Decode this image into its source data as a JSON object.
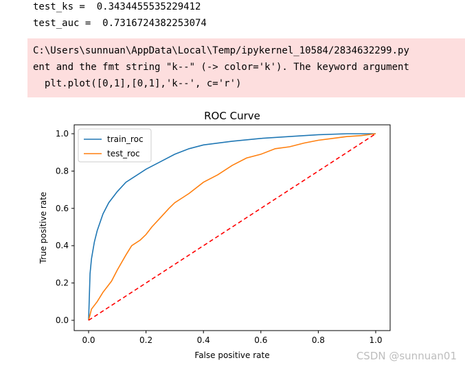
{
  "output": {
    "ks_line": "test_ks =  0.3434455535229412",
    "auc_line": "test_auc =  0.7316724382253074"
  },
  "warning": {
    "line1": "C:\\Users\\sunnuan\\AppData\\Local\\Temp/ipykernel_10584/2834632299.py",
    "line2": "ent and the fmt string \"k--\" (-> color='k'). The keyword argument",
    "line3": "  plt.plot([0,1],[0,1],'k--', c='r')"
  },
  "chart_data": {
    "type": "line",
    "title": "ROC Curve",
    "xlabel": "False positive rate",
    "ylabel": "True positive rate",
    "xlim": [
      0,
      1
    ],
    "ylim": [
      0,
      1
    ],
    "xticks": [
      "0.0",
      "0.2",
      "0.4",
      "0.6",
      "0.8",
      "1.0"
    ],
    "yticks": [
      "0.0",
      "0.2",
      "0.4",
      "0.6",
      "0.8",
      "1.0"
    ],
    "legend_position": "top-left",
    "series": [
      {
        "name": "train_roc",
        "color": "#1f77b4",
        "x": [
          0,
          0.005,
          0.01,
          0.02,
          0.03,
          0.05,
          0.07,
          0.1,
          0.13,
          0.16,
          0.2,
          0.25,
          0.3,
          0.35,
          0.4,
          0.5,
          0.6,
          0.7,
          0.8,
          0.9,
          1.0
        ],
        "y": [
          0,
          0.25,
          0.33,
          0.42,
          0.48,
          0.57,
          0.63,
          0.69,
          0.74,
          0.77,
          0.81,
          0.85,
          0.89,
          0.92,
          0.94,
          0.96,
          0.975,
          0.985,
          0.995,
          1.0,
          1.0
        ]
      },
      {
        "name": "test_roc",
        "color": "#ff7f0e",
        "x": [
          0,
          0.01,
          0.03,
          0.05,
          0.08,
          0.1,
          0.13,
          0.15,
          0.18,
          0.2,
          0.22,
          0.25,
          0.28,
          0.3,
          0.33,
          0.35,
          0.4,
          0.45,
          0.5,
          0.55,
          0.6,
          0.65,
          0.7,
          0.75,
          0.8,
          0.85,
          0.9,
          0.95,
          1.0
        ],
        "y": [
          0,
          0.06,
          0.1,
          0.15,
          0.21,
          0.27,
          0.35,
          0.4,
          0.43,
          0.46,
          0.5,
          0.55,
          0.6,
          0.63,
          0.66,
          0.68,
          0.74,
          0.78,
          0.83,
          0.87,
          0.89,
          0.92,
          0.93,
          0.95,
          0.965,
          0.975,
          0.985,
          0.99,
          1.0
        ]
      },
      {
        "name": "diagonal",
        "color": "#ff0000",
        "style": "dashed",
        "x": [
          0,
          1
        ],
        "y": [
          0,
          1
        ]
      }
    ]
  },
  "watermark": "CSDN @sunnuan01"
}
